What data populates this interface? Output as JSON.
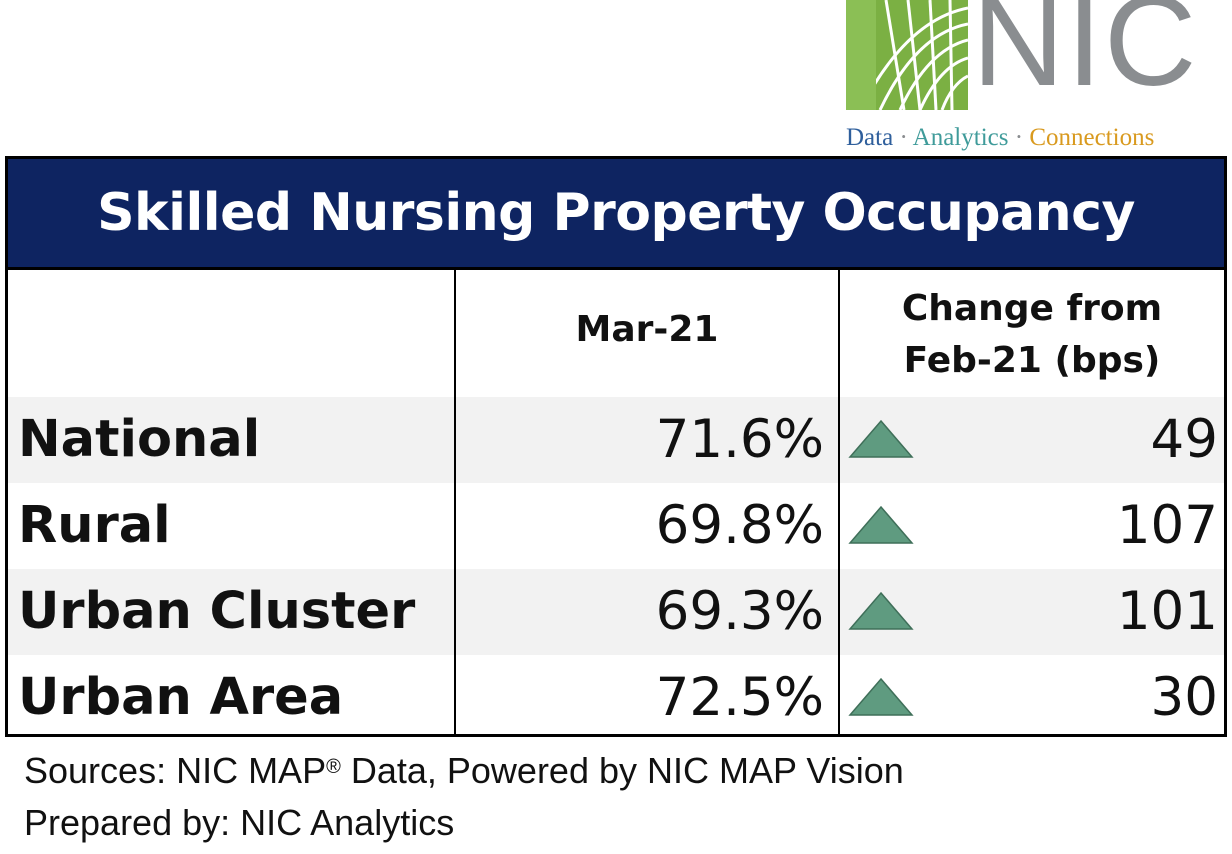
{
  "logo": {
    "letters": "NIC",
    "tagline": {
      "data": "Data",
      "separator": "·",
      "analytics": "Analytics",
      "connections": "Connections"
    },
    "colors": {
      "green": "#7bb043",
      "grey": "#8a8d90"
    }
  },
  "chart_data": {
    "type": "table",
    "title": "Skilled Nursing Property Occupancy",
    "columns": [
      "",
      "Mar-21",
      "Change from Feb-21 (bps)"
    ],
    "column_head_month": "Mar-21",
    "column_head_change_line1": "Change from",
    "column_head_change_line2": "Feb-21 (bps)",
    "rows": [
      {
        "label": "National",
        "occupancy": "71.6%",
        "direction": "up",
        "change": "49"
      },
      {
        "label": "Rural",
        "occupancy": "69.8%",
        "direction": "up",
        "change": "107"
      },
      {
        "label": "Urban Cluster",
        "occupancy": "69.3%",
        "direction": "up",
        "change": "101"
      },
      {
        "label": "Urban Area",
        "occupancy": "72.5%",
        "direction": "up",
        "change": "30"
      }
    ],
    "colors": {
      "header_bg": "#0e2461",
      "arrow_fill": "#5f9b80",
      "row_shade": "#f2f2f2"
    }
  },
  "footnotes": {
    "sources_prefix": "Sources: NIC MAP",
    "registered_mark": "®",
    "sources_suffix": " Data, Powered by NIC MAP Vision",
    "prepared_by": "Prepared by: NIC Analytics"
  }
}
